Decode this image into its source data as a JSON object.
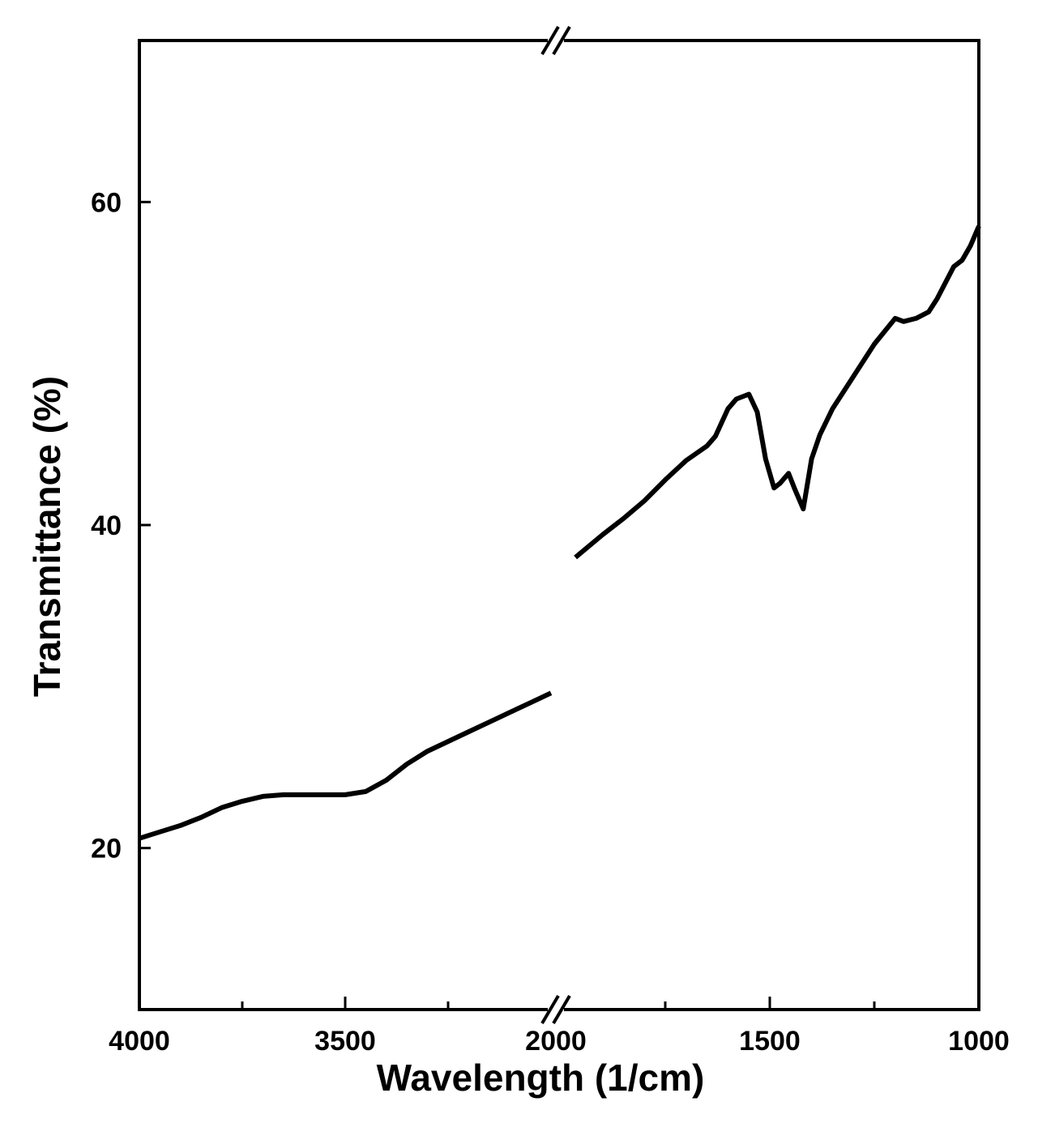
{
  "chart_data": {
    "type": "line",
    "xlabel": "Wavelength (1/cm)",
    "ylabel": "Transmittance (%)",
    "x_axis_broken": true,
    "x_segments": [
      {
        "xlim": [
          4000,
          3000
        ],
        "tick_labels": [
          "4000",
          "3500"
        ]
      },
      {
        "xlim": [
          2000,
          1000
        ],
        "tick_labels": [
          "2000",
          "1500",
          "1000"
        ]
      }
    ],
    "ylim": [
      10,
      70
    ],
    "y_ticks": [
      20,
      40,
      60
    ],
    "y_tick_labels": [
      "20",
      "40",
      "60"
    ],
    "grid": false,
    "series": [
      {
        "segments": [
          {
            "x": [
              4000,
              3950,
              3900,
              3850,
              3800,
              3750,
              3700,
              3650,
              3600,
              3550,
              3500,
              3450,
              3400,
              3350,
              3300,
              3250,
              3200,
              3150,
              3100,
              3050,
              3000
            ],
            "y": [
              20.6,
              21.0,
              21.4,
              21.9,
              22.5,
              22.9,
              23.2,
              23.3,
              23.3,
              23.3,
              23.3,
              23.5,
              24.2,
              25.2,
              26.0,
              26.6,
              27.2,
              27.8,
              28.4,
              29.0,
              29.6
            ]
          },
          {
            "x": [
              1965,
              1900,
              1850,
              1800,
              1750,
              1700,
              1650,
              1630,
              1600,
              1580,
              1550,
              1530,
              1510,
              1490,
              1475,
              1455,
              1440,
              1420,
              1400,
              1380,
              1350,
              1300,
              1250,
              1200,
              1180,
              1150,
              1120,
              1100,
              1080,
              1060,
              1040,
              1020,
              1000
            ],
            "y": [
              38.0,
              39.4,
              40.4,
              41.5,
              42.8,
              44.0,
              44.9,
              45.5,
              47.2,
              47.8,
              48.1,
              47.0,
              44.1,
              42.3,
              42.6,
              43.2,
              42.2,
              41.0,
              44.1,
              45.6,
              47.2,
              49.2,
              51.2,
              52.8,
              52.6,
              52.8,
              53.2,
              54.0,
              55.0,
              56.0,
              56.4,
              57.3,
              58.5
            ]
          }
        ]
      }
    ]
  }
}
